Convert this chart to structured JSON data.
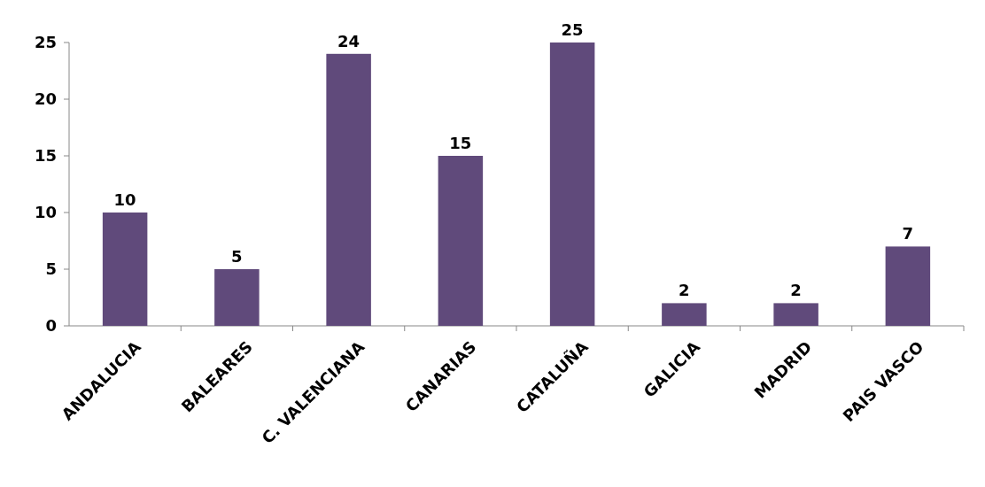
{
  "chart_data": {
    "type": "bar",
    "categories": [
      "ANDALUCIA",
      "BALEARES",
      "C. VALENCIANA",
      "CANARIAS",
      "CATALUÑA",
      "GALICIA",
      "MADRID",
      "PAIS VASCO"
    ],
    "values": [
      10,
      5,
      24,
      15,
      25,
      2,
      2,
      7
    ],
    "color": "#604a7b",
    "ylim": [
      0,
      25
    ],
    "yticks": [
      0,
      5,
      10,
      15,
      20,
      25
    ],
    "data_labels": true
  }
}
